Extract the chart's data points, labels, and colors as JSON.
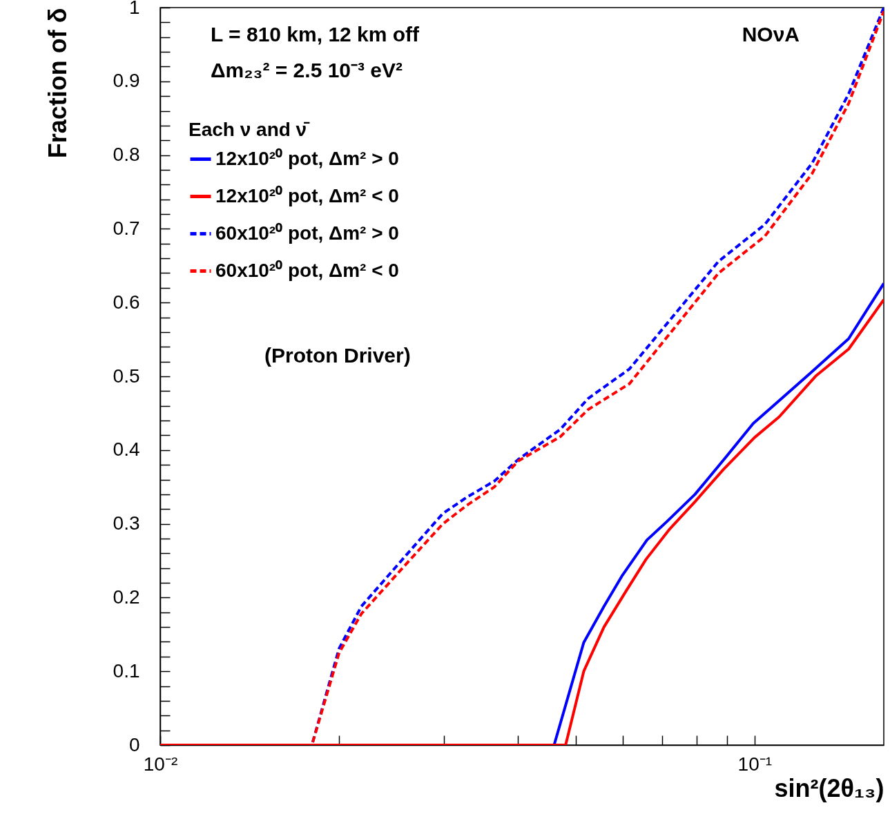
{
  "chart_data": {
    "type": "line",
    "xlabel": "sin²(2θ₁₃)",
    "ylabel": "Fraction of δ",
    "legend_title": "Each ν and ν̄",
    "log": "x",
    "grid": false,
    "marker": "none",
    "legend": "top left",
    "xlim": [
      0.01,
      0.165
    ],
    "ylim": [
      0,
      1
    ],
    "xticks": [
      {
        "value": 0.01,
        "label": "10⁻²"
      },
      {
        "value": 0.02,
        "label": null
      },
      {
        "value": 0.03,
        "label": null
      },
      {
        "value": 0.04,
        "label": null
      },
      {
        "value": 0.05,
        "label": null
      },
      {
        "value": 0.06,
        "label": null
      },
      {
        "value": 0.07,
        "label": null
      },
      {
        "value": 0.08,
        "label": null
      },
      {
        "value": 0.09,
        "label": null
      },
      {
        "value": 0.1,
        "label": "10⁻¹"
      }
    ],
    "yticks": [
      0,
      {
        "value": 0.02,
        "label": null
      },
      {
        "value": 0.04,
        "label": null
      },
      {
        "value": 0.06,
        "label": null
      },
      {
        "value": 0.08,
        "label": null
      },
      0.1,
      {
        "value": 0.12,
        "label": null
      },
      {
        "value": 0.14,
        "label": null
      },
      {
        "value": 0.16,
        "label": null
      },
      {
        "value": 0.18,
        "label": null
      },
      0.2,
      {
        "value": 0.22,
        "label": null
      },
      {
        "value": 0.24,
        "label": null
      },
      {
        "value": 0.26,
        "label": null
      },
      {
        "value": 0.28,
        "label": null
      },
      0.3,
      {
        "value": 0.32,
        "label": null
      },
      {
        "value": 0.34,
        "label": null
      },
      {
        "value": 0.36,
        "label": null
      },
      {
        "value": 0.38,
        "label": null
      },
      0.4,
      {
        "value": 0.42,
        "label": null
      },
      {
        "value": 0.44,
        "label": null
      },
      {
        "value": 0.46,
        "label": null
      },
      {
        "value": 0.48,
        "label": null
      },
      0.5,
      {
        "value": 0.52,
        "label": null
      },
      {
        "value": 0.54,
        "label": null
      },
      {
        "value": 0.56,
        "label": null
      },
      {
        "value": 0.58,
        "label": null
      },
      0.6,
      {
        "value": 0.62,
        "label": null
      },
      {
        "value": 0.64,
        "label": null
      },
      {
        "value": 0.66,
        "label": null
      },
      {
        "value": 0.68,
        "label": null
      },
      0.7,
      {
        "value": 0.72,
        "label": null
      },
      {
        "value": 0.74,
        "label": null
      },
      {
        "value": 0.76,
        "label": null
      },
      {
        "value": 0.78,
        "label": null
      },
      0.8,
      {
        "value": 0.82,
        "label": null
      },
      {
        "value": 0.84,
        "label": null
      },
      {
        "value": 0.86,
        "label": null
      },
      {
        "value": 0.88,
        "label": null
      },
      0.9,
      {
        "value": 0.92,
        "label": null
      },
      {
        "value": 0.94,
        "label": null
      },
      {
        "value": 0.96,
        "label": null
      },
      {
        "value": 0.98,
        "label": null
      },
      1
    ],
    "annotations": [
      "L = 810 km, 12 km off",
      "Δm₂₃² = 2.5 10⁻³ eV²",
      "NOνA",
      "(Proton Driver)"
    ],
    "series": [
      {
        "name": "12x10²⁰ pot, Δm² > 0",
        "color": "#0000ff",
        "line_style": "solid",
        "x": [
          0.01,
          0.046,
          0.0516,
          0.0558,
          0.0598,
          0.0659,
          0.0712,
          0.0794,
          0.0894,
          0.0995,
          0.11,
          0.124,
          0.144,
          0.165
        ],
        "values": [
          0,
          0,
          0.139,
          0.188,
          0.229,
          0.278,
          0.303,
          0.34,
          0.39,
          0.436,
          0.467,
          0.504,
          0.551,
          0.626
        ]
      },
      {
        "name": "12x10²⁰ pot, Δm² < 0",
        "color": "#ff0000",
        "line_style": "solid",
        "x": [
          0.01,
          0.0481,
          0.0516,
          0.0558,
          0.0607,
          0.0657,
          0.072,
          0.0794,
          0.0887,
          0.1,
          0.11,
          0.127,
          0.144,
          0.165
        ],
        "values": [
          0,
          0,
          0.1,
          0.16,
          0.208,
          0.252,
          0.293,
          0.33,
          0.374,
          0.417,
          0.445,
          0.501,
          0.537,
          0.604
        ]
      },
      {
        "name": "60x10²⁰ pot, Δm² > 0",
        "color": "#0000ff",
        "line_style": "dashed",
        "x": [
          0.01,
          0.018,
          0.02,
          0.0218,
          0.0259,
          0.0299,
          0.0328,
          0.0365,
          0.04,
          0.0471,
          0.0525,
          0.0616,
          0.087,
          0.1041,
          0.125,
          0.144,
          0.165
        ],
        "values": [
          0,
          0,
          0.131,
          0.188,
          0.257,
          0.314,
          0.336,
          0.358,
          0.387,
          0.428,
          0.47,
          0.51,
          0.656,
          0.706,
          0.789,
          0.883,
          1
        ]
      },
      {
        "name": "60x10²⁰ pot, Δm² < 0",
        "color": "#ff0000",
        "line_style": "dashed",
        "x": [
          0.01,
          0.018,
          0.02,
          0.0218,
          0.0259,
          0.0299,
          0.0328,
          0.0365,
          0.04,
          0.0471,
          0.0525,
          0.0616,
          0.087,
          0.1041,
          0.125,
          0.144,
          0.165
        ],
        "values": [
          0,
          0,
          0.125,
          0.178,
          0.245,
          0.3,
          0.325,
          0.35,
          0.385,
          0.418,
          0.455,
          0.49,
          0.64,
          0.69,
          0.775,
          0.87,
          0.995
        ]
      }
    ]
  }
}
